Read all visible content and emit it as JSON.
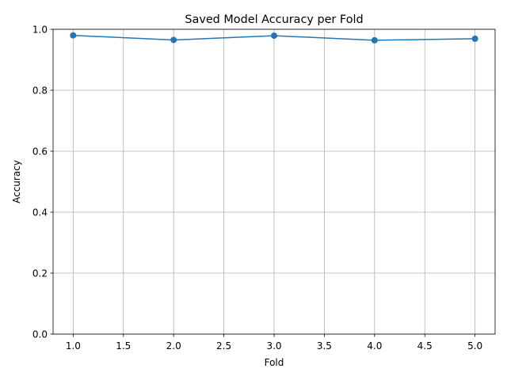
{
  "chart_data": {
    "type": "line",
    "title": "Saved Model Accuracy per Fold",
    "xlabel": "Fold",
    "ylabel": "Accuracy",
    "x": [
      1,
      2,
      3,
      4,
      5
    ],
    "series": [
      {
        "values": [
          0.98,
          0.965,
          0.979,
          0.964,
          0.969
        ]
      }
    ],
    "xlim": [
      0.8,
      5.2
    ],
    "ylim": [
      0.0,
      1.0
    ],
    "xticks": [
      "1.0",
      "1.5",
      "2.0",
      "2.5",
      "3.0",
      "3.5",
      "4.0",
      "4.5",
      "5.0"
    ],
    "yticks": [
      "0.0",
      "0.2",
      "0.4",
      "0.6",
      "0.8",
      "1.0"
    ],
    "grid": true,
    "colors": {
      "line": "#1f77b4",
      "grid": "#b0b0b0",
      "axes": "#000000"
    }
  }
}
